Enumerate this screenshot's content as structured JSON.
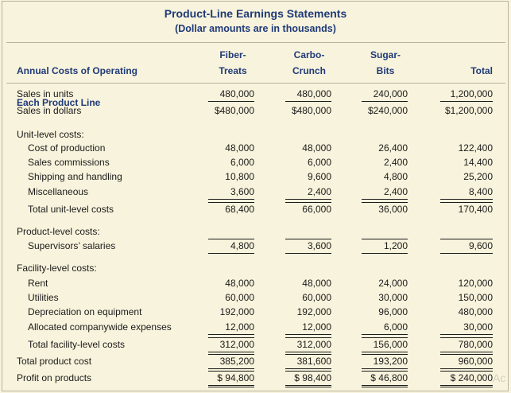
{
  "title": "Product-Line Earnings Statements",
  "subtitle": "(Dollar amounts are in thousands)",
  "header": {
    "label_line1": "Annual Costs of Operating",
    "label_line2": "Each Product Line",
    "cols": [
      {
        "line1": "Fiber-",
        "line2": "Treats"
      },
      {
        "line1": "Carbo-",
        "line2": "Crunch"
      },
      {
        "line1": "Sugar-",
        "line2": "Bits"
      },
      {
        "line1": "",
        "line2": "Total"
      }
    ]
  },
  "rows": [
    {
      "label": "Sales in units",
      "values": [
        "480,000",
        "480,000",
        "240,000",
        "1,200,000"
      ]
    },
    {
      "label": "Sales in dollars",
      "values": [
        "$480,000",
        "$480,000",
        "$240,000",
        "$1,200,000"
      ]
    },
    {
      "label": "Unit-level costs:",
      "values": []
    },
    {
      "label": "Cost of production",
      "values": [
        "48,000",
        "48,000",
        "26,400",
        "122,400"
      ]
    },
    {
      "label": "Sales commissions",
      "values": [
        "6,000",
        "6,000",
        "2,400",
        "14,400"
      ]
    },
    {
      "label": "Shipping and handling",
      "values": [
        "10,800",
        "9,600",
        "4,800",
        "25,200"
      ]
    },
    {
      "label": "Miscellaneous",
      "values": [
        "3,600",
        "2,400",
        "2,400",
        "8,400"
      ]
    },
    {
      "label": "Total unit-level costs",
      "values": [
        "68,400",
        "66,000",
        "36,000",
        "170,400"
      ]
    },
    {
      "label": "Product-level costs:",
      "values": []
    },
    {
      "label": "Supervisors’ salaries",
      "values": [
        "4,800",
        "3,600",
        "1,200",
        "9,600"
      ]
    },
    {
      "label": "Facility-level costs:",
      "values": []
    },
    {
      "label": "Rent",
      "values": [
        "48,000",
        "48,000",
        "24,000",
        "120,000"
      ]
    },
    {
      "label": "Utilities",
      "values": [
        "60,000",
        "60,000",
        "30,000",
        "150,000"
      ]
    },
    {
      "label": "Depreciation on equipment",
      "values": [
        "192,000",
        "192,000",
        "96,000",
        "480,000"
      ]
    },
    {
      "label": "Allocated companywide expenses",
      "values": [
        "12,000",
        "12,000",
        "6,000",
        "30,000"
      ]
    },
    {
      "label": "Total facility-level costs",
      "values": [
        "312,000",
        "312,000",
        "156,000",
        "780,000"
      ]
    },
    {
      "label": "Total product cost",
      "values": [
        "385,200",
        "381,600",
        "193,200",
        "960,000"
      ]
    },
    {
      "label": "Profit on products",
      "values": [
        "$ 94,800",
        "$ 98,400",
        "$ 46,800",
        "$ 240,000"
      ]
    }
  ],
  "watermark": "Ac"
}
